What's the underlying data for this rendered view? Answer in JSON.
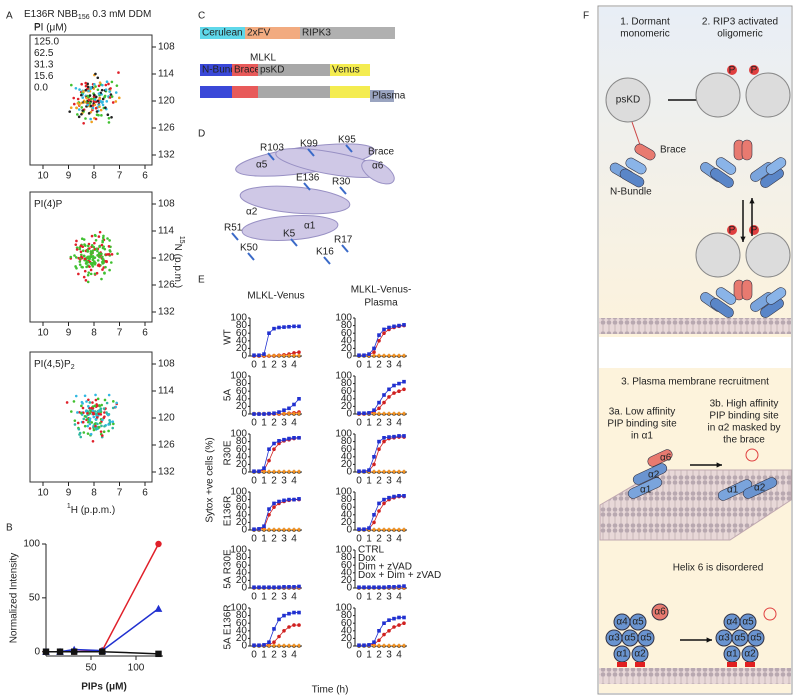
{
  "panel_labels": [
    "A",
    "B",
    "C",
    "D",
    "E",
    "F"
  ],
  "A": {
    "title": [
      "E136R NBB",
      "156",
      " 0.3 mM DDM"
    ],
    "legend_title": "PI (μM)",
    "legend": [
      {
        "label": "125.0",
        "color": "#e0202a"
      },
      {
        "label": "62.5",
        "color": "#f0a020"
      },
      {
        "label": "31.3",
        "color": "#40c030"
      },
      {
        "label": "15.6",
        "color": "#30b8e0"
      },
      {
        "label": "0.0",
        "color": "#222222"
      }
    ],
    "spectra": [
      [
        "PI"
      ],
      [
        "PI(4)P"
      ],
      [
        "PI(4,5)P",
        "2"
      ]
    ],
    "xticks": [
      10,
      9,
      8,
      7,
      6
    ],
    "yticks": [
      108,
      114,
      120,
      126,
      132
    ],
    "xlabel": [
      "1",
      "H (p.p.m.)"
    ],
    "ylabel": [
      "15",
      "N (p.p.m.)"
    ]
  },
  "B": {
    "chart_data": {
      "type": "line",
      "xlabel": "PIPs (μM)",
      "ylabel": "Normalized Intensity",
      "x": [
        0,
        15.6,
        31.3,
        62.5,
        125
      ],
      "xlim": [
        0,
        130
      ],
      "ylim": [
        -4,
        100
      ],
      "xticks": [
        50,
        100
      ],
      "yticks": [
        0,
        50,
        100
      ],
      "series": [
        {
          "color": "#e0202a",
          "marker": "circle",
          "values": [
            0,
            0,
            0,
            1,
            100
          ]
        },
        {
          "color": "#2030d0",
          "marker": "triangle",
          "values": [
            0,
            0,
            2,
            1,
            40
          ]
        },
        {
          "color": "#111111",
          "marker": "square",
          "values": [
            0,
            0,
            0,
            0,
            -2
          ]
        }
      ]
    }
  },
  "C": {
    "row1": [
      {
        "label": "Cerulean",
        "color": "#5fd8ea"
      },
      {
        "label": "2xFV",
        "color": "#f2ab80"
      },
      {
        "label": "RIPK3",
        "color": "#b0b0b0"
      }
    ],
    "mlkl": "MLKL",
    "row2": [
      {
        "label": "N-Bundle",
        "color": "#3a48d8"
      },
      {
        "label": "Brace",
        "color": "#e85a5a"
      },
      {
        "label": "psKD",
        "color": "#a8a8a8"
      },
      {
        "label": "Venus",
        "color": "#f4ec50"
      }
    ],
    "plasma": {
      "label": "Plasma",
      "color": "#9aa4c0"
    }
  },
  "D": {
    "labels": [
      "R103",
      "K99",
      "K95",
      "α5",
      "Brace",
      "α6",
      "E136",
      "R30",
      "α2",
      "R51",
      "K50",
      "K5",
      "α1",
      "R17",
      "K16"
    ]
  },
  "E": {
    "columns": [
      [
        "MLKL-Venus"
      ],
      [
        "MLKL-Venus-",
        "Plasma"
      ]
    ],
    "rows": [
      "WT",
      "5A",
      "R30E",
      "E136R",
      "5A R30E",
      "5A E136R"
    ],
    "ylabel": "Sytox +ve cells (%)",
    "xlabel": "Time (h)",
    "xlim": [
      -0.4,
      4.8
    ],
    "ylim": [
      0,
      100
    ],
    "xticks": [
      0,
      1,
      2,
      3,
      4
    ],
    "yticks": [
      0,
      20,
      40,
      60,
      80,
      100
    ],
    "x": [
      0,
      0.5,
      1,
      1.5,
      2,
      2.5,
      3,
      3.5,
      4,
      4.5
    ],
    "legend": [
      {
        "name": "CTRL",
        "color": "#222222",
        "marker": "circle"
      },
      {
        "name": "Dox",
        "color": "#d02020",
        "marker": "circle"
      },
      {
        "name": "Dim + zVAD",
        "color": "#f09020",
        "marker": "diamond"
      },
      {
        "name": "Dox + Dim + zVAD",
        "color": "#2030d0",
        "marker": "square"
      }
    ],
    "data": [
      [
        [
          [
            0,
            0,
            0,
            0,
            0,
            0,
            0,
            0,
            0,
            0
          ],
          [
            0,
            0,
            0,
            0,
            1,
            2,
            3,
            5,
            8,
            10
          ],
          [
            1,
            1,
            1,
            1,
            1,
            1,
            1,
            1,
            1,
            1
          ],
          [
            2,
            2,
            5,
            60,
            72,
            75,
            76,
            77,
            78,
            78
          ]
        ],
        [
          [
            0,
            0,
            0,
            0,
            0,
            0,
            0,
            0,
            0,
            0
          ],
          [
            2,
            2,
            3,
            10,
            40,
            60,
            70,
            75,
            78,
            80
          ],
          [
            1,
            1,
            1,
            1,
            1,
            1,
            1,
            1,
            1,
            1
          ],
          [
            2,
            2,
            5,
            20,
            55,
            70,
            75,
            78,
            80,
            82
          ]
        ]
      ],
      [
        [
          [
            0,
            0,
            0,
            0,
            0,
            0,
            0,
            0,
            0,
            0
          ],
          [
            0,
            0,
            0,
            0,
            0,
            0,
            1,
            2,
            3,
            5
          ],
          [
            1,
            1,
            1,
            1,
            1,
            1,
            1,
            1,
            1,
            1
          ],
          [
            0,
            0,
            0,
            1,
            2,
            5,
            10,
            15,
            25,
            40
          ]
        ],
        [
          [
            0,
            0,
            0,
            0,
            0,
            0,
            0,
            0,
            0,
            0
          ],
          [
            0,
            0,
            2,
            5,
            15,
            30,
            45,
            55,
            60,
            65
          ],
          [
            1,
            1,
            1,
            1,
            1,
            1,
            1,
            1,
            1,
            1
          ],
          [
            2,
            2,
            3,
            10,
            30,
            50,
            65,
            75,
            80,
            85
          ]
        ]
      ],
      [
        [
          [
            0,
            0,
            0,
            0,
            0,
            0,
            0,
            0,
            0,
            0
          ],
          [
            2,
            2,
            5,
            30,
            60,
            75,
            82,
            85,
            88,
            90
          ],
          [
            1,
            1,
            1,
            1,
            1,
            1,
            1,
            1,
            1,
            1
          ],
          [
            2,
            2,
            10,
            60,
            75,
            82,
            85,
            88,
            90,
            90
          ]
        ],
        [
          [
            0,
            0,
            0,
            0,
            0,
            0,
            0,
            0,
            0,
            0
          ],
          [
            2,
            2,
            3,
            20,
            60,
            80,
            88,
            90,
            92,
            92
          ],
          [
            1,
            1,
            1,
            1,
            1,
            1,
            1,
            1,
            1,
            1
          ],
          [
            2,
            2,
            5,
            40,
            80,
            90,
            92,
            93,
            95,
            95
          ]
        ]
      ],
      [
        [
          [
            0,
            0,
            0,
            0,
            0,
            0,
            0,
            0,
            0,
            0
          ],
          [
            2,
            2,
            5,
            40,
            60,
            70,
            75,
            78,
            80,
            80
          ],
          [
            1,
            1,
            1,
            1,
            1,
            1,
            1,
            1,
            1,
            1
          ],
          [
            2,
            3,
            10,
            55,
            70,
            75,
            78,
            80,
            80,
            82
          ]
        ],
        [
          [
            0,
            0,
            0,
            0,
            0,
            0,
            0,
            0,
            0,
            0
          ],
          [
            2,
            2,
            3,
            20,
            50,
            70,
            80,
            85,
            88,
            88
          ],
          [
            1,
            1,
            1,
            1,
            1,
            1,
            1,
            1,
            1,
            1
          ],
          [
            2,
            2,
            5,
            40,
            70,
            80,
            85,
            88,
            90,
            90
          ]
        ]
      ],
      [
        [
          [
            0,
            0,
            0,
            0,
            0,
            0,
            0,
            0,
            0,
            0
          ],
          [
            1,
            1,
            1,
            1,
            1,
            1,
            1,
            1,
            1,
            1
          ],
          [
            1,
            1,
            1,
            1,
            1,
            1,
            1,
            1,
            1,
            1
          ],
          [
            2,
            2,
            2,
            2,
            2,
            2,
            3,
            3,
            3,
            4
          ]
        ],
        [
          [
            0,
            0,
            0,
            0,
            0,
            0,
            0,
            0,
            0,
            0
          ],
          [
            1,
            1,
            1,
            1,
            1,
            1,
            1,
            1,
            1,
            1
          ],
          [
            1,
            1,
            1,
            1,
            1,
            1,
            1,
            1,
            1,
            1
          ],
          [
            2,
            2,
            2,
            2,
            2,
            2,
            3,
            3,
            4,
            5
          ]
        ]
      ],
      [
        [
          [
            0,
            0,
            0,
            0,
            0,
            0,
            0,
            0,
            0,
            0
          ],
          [
            2,
            2,
            2,
            3,
            10,
            25,
            40,
            50,
            55,
            55
          ],
          [
            1,
            1,
            1,
            1,
            1,
            1,
            1,
            1,
            1,
            1
          ],
          [
            2,
            2,
            3,
            10,
            45,
            70,
            80,
            85,
            88,
            88
          ]
        ],
        [
          [
            0,
            0,
            0,
            0,
            0,
            0,
            0,
            0,
            0,
            0
          ],
          [
            2,
            2,
            2,
            5,
            15,
            30,
            40,
            50,
            55,
            60
          ],
          [
            1,
            1,
            1,
            1,
            1,
            1,
            1,
            1,
            1,
            1
          ],
          [
            2,
            2,
            3,
            10,
            40,
            60,
            68,
            72,
            75,
            75
          ]
        ]
      ]
    ]
  },
  "F": {
    "step1": [
      "1. Dormant",
      "monomeric"
    ],
    "step2": [
      "2. RIP3 activated",
      "oligomeric"
    ],
    "pskd": "psKD",
    "brace": "Brace",
    "nbundle": "N-Bundle",
    "phospho": "P",
    "step3": "3. Plasma membrane recruitment",
    "step3a": [
      "3a. Low affinity",
      "PIP binding site",
      "in α1"
    ],
    "step3b": [
      "3b. High affinity",
      "PIP binding site",
      "in α2 masked by",
      "the brace"
    ],
    "helix6": "Helix 6 is disordered",
    "helices": [
      "α1",
      "α2",
      "α3",
      "α4",
      "α5",
      "α6"
    ]
  }
}
